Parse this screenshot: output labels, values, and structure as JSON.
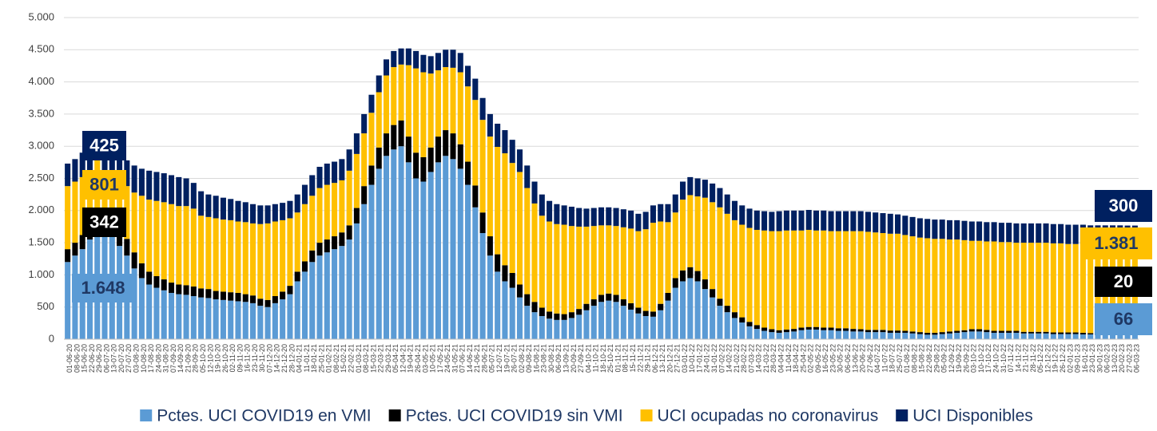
{
  "chart_data": {
    "type": "stacked-bar",
    "categories": [
      "01-06-20",
      "08-06-20",
      "15-06-20",
      "22-06-20",
      "29-06-20",
      "06-07-20",
      "13-07-20",
      "20-07-20",
      "27-07-20",
      "03-08-20",
      "10-08-20",
      "17-08-20",
      "24-08-20",
      "31-08-20",
      "07-09-20",
      "14-09-20",
      "21-09-20",
      "28-09-20",
      "05-10-20",
      "12-10-20",
      "19-10-20",
      "26-10-20",
      "02-11-20",
      "09-11-20",
      "16-11-20",
      "23-11-20",
      "30-11-20",
      "07-12-20",
      "14-12-20",
      "21-12-20",
      "28-12-20",
      "04-01-21",
      "11-01-21",
      "18-01-21",
      "25-01-21",
      "01-02-21",
      "08-02-21",
      "15-02-21",
      "22-02-21",
      "01-03-21",
      "08-03-21",
      "15-03-21",
      "22-03-21",
      "29-03-21",
      "05-04-21",
      "12-04-21",
      "19-04-21",
      "26-04-21",
      "03-05-21",
      "10-05-21",
      "17-05-21",
      "24-05-21",
      "31-05-21",
      "07-06-21",
      "14-06-21",
      "21-06-21",
      "28-06-21",
      "05-07-21",
      "12-07-21",
      "19-07-21",
      "26-07-21",
      "02-08-21",
      "09-08-21",
      "16-08-21",
      "23-08-21",
      "30-08-21",
      "06-09-21",
      "13-09-21",
      "20-09-21",
      "27-09-21",
      "04-10-21",
      "11-10-21",
      "18-10-21",
      "25-10-21",
      "01-11-21",
      "08-11-21",
      "15-11-21",
      "22-11-21",
      "29-11-21",
      "06-12-21",
      "13-12-21",
      "20-12-21",
      "27-12-21",
      "03-01-22",
      "10-01-22",
      "17-01-22",
      "24-01-22",
      "31-01-22",
      "07-02-22",
      "14-02-22",
      "21-02-22",
      "28-02-22",
      "07-03-22",
      "14-03-22",
      "21-03-22",
      "28-03-22",
      "04-04-22",
      "11-04-22",
      "18-04-22",
      "25-04-22",
      "02-05-22",
      "09-05-22",
      "16-05-22",
      "23-05-22",
      "30-05-22",
      "06-06-22",
      "13-06-22",
      "20-06-22",
      "27-06-22",
      "04-07-22",
      "11-07-22",
      "18-07-22",
      "25-07-22",
      "01-08-22",
      "08-08-22",
      "15-08-22",
      "22-08-22",
      "29-08-22",
      "05-09-22",
      "12-09-22",
      "19-09-22",
      "26-09-22",
      "03-10-22",
      "10-10-22",
      "17-10-22",
      "24-10-22",
      "31-10-22",
      "07-11-22",
      "14-11-22",
      "21-11-22",
      "28-11-22",
      "05-12-22",
      "12-12-22",
      "19-12-22",
      "26-12-22",
      "02-01-23",
      "09-01-23",
      "16-01-23",
      "23-01-23",
      "30-01-23",
      "06-02-23",
      "13-02-23",
      "20-02-23",
      "27-02-23",
      "06-03-23"
    ],
    "series": [
      {
        "name": "Pctes. UCI COVID19 en VMI",
        "color": "#5b9bd5",
        "label_color": "#1f3864",
        "values": [
          1200,
          1300,
          1400,
          1550,
          1648,
          1700,
          1650,
          1450,
          1300,
          1100,
          950,
          850,
          800,
          760,
          720,
          700,
          690,
          670,
          650,
          640,
          620,
          610,
          600,
          590,
          580,
          560,
          520,
          500,
          560,
          620,
          700,
          900,
          1050,
          1200,
          1300,
          1350,
          1400,
          1450,
          1550,
          1800,
          2100,
          2400,
          2650,
          2850,
          2950,
          3000,
          2750,
          2500,
          2450,
          2600,
          2750,
          2850,
          2800,
          2650,
          2400,
          2050,
          1650,
          1300,
          1050,
          900,
          800,
          650,
          520,
          420,
          360,
          320,
          300,
          300,
          330,
          380,
          450,
          520,
          580,
          600,
          580,
          520,
          460,
          400,
          360,
          350,
          450,
          600,
          800,
          900,
          950,
          900,
          780,
          650,
          520,
          420,
          330,
          260,
          200,
          160,
          130,
          110,
          100,
          110,
          120,
          140,
          150,
          150,
          140,
          140,
          130,
          130,
          120,
          120,
          110,
          110,
          110,
          100,
          100,
          100,
          90,
          80,
          70,
          70,
          80,
          90,
          100,
          110,
          120,
          120,
          110,
          100,
          100,
          100,
          100,
          90,
          90,
          90,
          90,
          80,
          80,
          80,
          80,
          75,
          75,
          70,
          70,
          70,
          68,
          66,
          66
        ],
        "value_labels": {
          "4": "1.648",
          "144": "66"
        }
      },
      {
        "name": "Pctes. UCI COVID19 sin VMI",
        "color": "#000000",
        "label_color": "#ffffff",
        "values": [
          200,
          200,
          220,
          250,
          342,
          300,
          300,
          280,
          260,
          250,
          230,
          200,
          180,
          170,
          160,
          150,
          150,
          150,
          140,
          140,
          130,
          130,
          130,
          130,
          120,
          120,
          110,
          110,
          110,
          120,
          130,
          150,
          160,
          180,
          200,
          200,
          200,
          210,
          220,
          240,
          280,
          300,
          330,
          350,
          380,
          400,
          400,
          400,
          380,
          380,
          400,
          400,
          400,
          380,
          360,
          340,
          320,
          300,
          270,
          250,
          230,
          200,
          180,
          160,
          130,
          110,
          100,
          90,
          90,
          90,
          100,
          100,
          110,
          110,
          110,
          100,
          100,
          90,
          80,
          80,
          100,
          120,
          150,
          170,
          170,
          160,
          150,
          130,
          110,
          100,
          90,
          80,
          70,
          60,
          50,
          45,
          40,
          40,
          40,
          40,
          40,
          40,
          40,
          40,
          40,
          40,
          40,
          35,
          35,
          35,
          35,
          35,
          35,
          30,
          30,
          30,
          30,
          30,
          30,
          30,
          30,
          30,
          35,
          35,
          35,
          30,
          30,
          30,
          30,
          25,
          25,
          25,
          25,
          25,
          25,
          25,
          25,
          25,
          20,
          20,
          20,
          20,
          20,
          20,
          20
        ]
      },
      {
        "name": "UCI ocupadas no coronavirus",
        "color": "#ffc000",
        "label_color": "#1f3864",
        "values": [
          980,
          950,
          900,
          720,
          801,
          550,
          570,
          720,
          820,
          930,
          1050,
          1120,
          1170,
          1200,
          1220,
          1220,
          1230,
          1210,
          1130,
          1120,
          1130,
          1120,
          1120,
          1110,
          1120,
          1120,
          1160,
          1190,
          1160,
          1110,
          1050,
          920,
          890,
          850,
          850,
          850,
          830,
          810,
          850,
          840,
          820,
          820,
          860,
          900,
          900,
          870,
          1110,
          1310,
          1320,
          1150,
          1030,
          980,
          1020,
          1120,
          1170,
          1330,
          1440,
          1550,
          1670,
          1740,
          1710,
          1750,
          1650,
          1530,
          1430,
          1400,
          1390,
          1390,
          1340,
          1280,
          1200,
          1140,
          1080,
          1060,
          1070,
          1120,
          1160,
          1190,
          1270,
          1380,
          1280,
          1100,
          1020,
          1100,
          1120,
          1160,
          1270,
          1350,
          1420,
          1430,
          1430,
          1440,
          1460,
          1480,
          1510,
          1525,
          1540,
          1540,
          1530,
          1510,
          1510,
          1500,
          1510,
          1500,
          1510,
          1510,
          1520,
          1525,
          1525,
          1515,
          1505,
          1505,
          1505,
          1490,
          1480,
          1470,
          1470,
          1460,
          1450,
          1430,
          1420,
          1400,
          1375,
          1375,
          1375,
          1390,
          1380,
          1380,
          1370,
          1385,
          1385,
          1385,
          1385,
          1385,
          1385,
          1375,
          1375,
          1380,
          1375,
          1380,
          1380,
          1380,
          1382,
          1381,
          1381
        ],
        "value_labels": {
          "4": "801",
          "144": "1.381"
        }
      },
      {
        "name": "UCI Disponibles",
        "color": "#002060",
        "label_color": "#ffffff",
        "values": [
          350,
          350,
          380,
          400,
          425,
          400,
          400,
          400,
          400,
          420,
          420,
          450,
          450,
          450,
          450,
          450,
          430,
          400,
          380,
          350,
          350,
          340,
          330,
          320,
          310,
          300,
          290,
          280,
          270,
          270,
          270,
          280,
          300,
          320,
          330,
          330,
          330,
          330,
          330,
          320,
          300,
          280,
          260,
          250,
          250,
          250,
          260,
          270,
          270,
          270,
          270,
          270,
          280,
          300,
          320,
          330,
          340,
          350,
          360,
          360,
          360,
          350,
          350,
          340,
          330,
          320,
          310,
          300,
          300,
          290,
          280,
          280,
          280,
          280,
          280,
          280,
          280,
          270,
          270,
          270,
          270,
          280,
          280,
          280,
          280,
          280,
          280,
          290,
          300,
          300,
          300,
          300,
          300,
          300,
          300,
          300,
          310,
          310,
          310,
          310,
          310,
          310,
          310,
          310,
          310,
          310,
          310,
          310,
          310,
          310,
          310,
          310,
          300,
          300,
          300,
          300,
          300,
          300,
          300,
          300,
          300,
          300,
          300,
          300,
          300,
          300,
          300,
          300,
          300,
          300,
          300,
          300,
          300,
          300,
          300,
          300,
          300,
          300,
          300,
          300,
          300,
          300,
          300,
          300,
          300
        ]
      }
    ],
    "ylim": [
      0,
      5000
    ],
    "yticks": [
      0,
      500,
      {
        "value": 1000,
        "label": "1.000"
      },
      {
        "value": 1500,
        "label": "1.500"
      },
      {
        "value": 2000,
        "label": "2.000"
      },
      {
        "value": 2500,
        "label": "2.500"
      },
      {
        "value": 3000,
        "label": "3.000"
      },
      {
        "value": 3500,
        "label": "3.500"
      },
      {
        "value": 4000,
        "label": "4.000"
      },
      {
        "value": 4500,
        "label": "4.500"
      },
      {
        "value": 5000,
        "label": "5.000"
      }
    ],
    "grid": true,
    "legend": "bottom"
  }
}
